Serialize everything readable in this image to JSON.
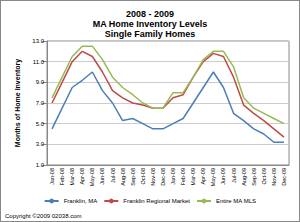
{
  "chart_data": {
    "type": "line",
    "title": "2008 - 2009",
    "subtitle": [
      "MA Home Inventory Levels",
      "Single Family Homes"
    ],
    "ylabel": "Months of Home Inventory",
    "annotations": [
      "Copyright ©2009 02038.com"
    ],
    "categories": [
      "Jan-08",
      "Feb-08",
      "Mar-08",
      "Apr-08",
      "May-08",
      "Jun-08",
      "Jul-08",
      "Aug-08",
      "Sep-08",
      "Oct-08",
      "Nov-08",
      "Dec-08",
      "Jan-09",
      "Feb-09",
      "Mar-09",
      "Apr-09",
      "May-09",
      "Jun-09",
      "Jul-09",
      "Aug-09",
      "Sep-09",
      "Oct-09",
      "Nov-09",
      "Dec-09"
    ],
    "series": [
      {
        "name": "Franklin, MA",
        "color": "#4a7ebb",
        "values": [
          4.5,
          6.5,
          8.5,
          9.2,
          10.0,
          8.2,
          7.0,
          5.3,
          5.5,
          5.0,
          4.5,
          4.5,
          5.0,
          5.5,
          7.0,
          8.5,
          10.0,
          8.5,
          6.0,
          5.3,
          4.5,
          4.0,
          3.2,
          3.2
        ]
      },
      {
        "name": "Franklin Regional Market",
        "color": "#be4b48",
        "values": [
          7.0,
          9.0,
          11.0,
          12.0,
          11.5,
          10.0,
          8.2,
          7.5,
          7.0,
          6.8,
          6.5,
          6.5,
          7.5,
          7.8,
          9.5,
          11.0,
          11.8,
          11.5,
          9.5,
          6.8,
          6.0,
          5.3,
          4.5,
          3.7
        ]
      },
      {
        "name": "Entire MA MLS",
        "color": "#98b954",
        "values": [
          7.5,
          9.5,
          11.5,
          12.5,
          12.5,
          11.2,
          9.5,
          8.5,
          7.8,
          7.0,
          6.5,
          6.5,
          8.0,
          8.0,
          9.5,
          11.2,
          12.0,
          12.0,
          10.5,
          7.5,
          6.5,
          6.0,
          5.5,
          5.0
        ]
      }
    ],
    "ylim": [
      1,
      13
    ],
    "yticks": [
      {
        "value": 1,
        "label": "1.0"
      },
      {
        "value": 3,
        "label": "3.0"
      },
      {
        "value": 5,
        "label": "5.0"
      },
      {
        "value": 7,
        "label": "7.0"
      },
      {
        "value": 9,
        "label": "9.0"
      },
      {
        "value": 11,
        "label": "11.0"
      },
      {
        "value": 13,
        "label": "13.0"
      }
    ],
    "grid": true,
    "legend": "bottom",
    "marker": "none"
  }
}
